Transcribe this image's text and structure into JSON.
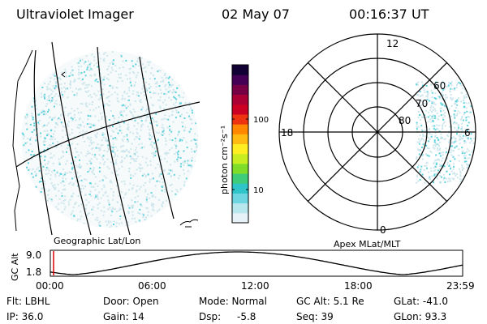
{
  "header": {
    "title": "Ultraviolet Imager",
    "date": "02 May 07",
    "time": "00:16:37 UT"
  },
  "geo_panel": {
    "caption": "Geographic Lat/Lon"
  },
  "colorbar": {
    "unit_label": "photon cm⁻²s⁻¹",
    "ticks": [
      "100",
      "10"
    ],
    "scale": "log",
    "colors": [
      "#e6f2f7",
      "#b8e8ee",
      "#6ed6e0",
      "#2ec4c8",
      "#3fcc7a",
      "#7fdd2a",
      "#c8ee22",
      "#ffee22",
      "#ffbb11",
      "#ff8800",
      "#ee3311",
      "#cc0022",
      "#aa0033",
      "#770044",
      "#440055",
      "#110033"
    ]
  },
  "polar_panel": {
    "caption": "Apex MLat/MLT",
    "mlt_labels": [
      "12",
      "18",
      "6",
      "0"
    ],
    "mlat_labels": [
      "60",
      "70",
      "80"
    ]
  },
  "altitude_plot": {
    "ylabel": "GC Alt",
    "y_ticks": [
      "9.0",
      "1.8"
    ],
    "x_ticks": [
      "00:00",
      "06:00",
      "12:00",
      "18:00",
      "23:59"
    ]
  },
  "status": {
    "row1": [
      "Flt: LBHL",
      "Door: Open",
      "Mode: Normal",
      "GC Alt: 5.1 Re",
      "GLat: -41.0"
    ],
    "row2_left": [
      "IP: 36.0",
      "Gain: 14",
      "Dsp:"
    ],
    "dsp_value": "-5.8",
    "seq": "Seq: 39",
    "glon": "GLon: 93.3"
  },
  "colors": {
    "aurora": "#5fd3dc",
    "aurora_light": "#cde6ec",
    "marker": "#dd0000"
  }
}
